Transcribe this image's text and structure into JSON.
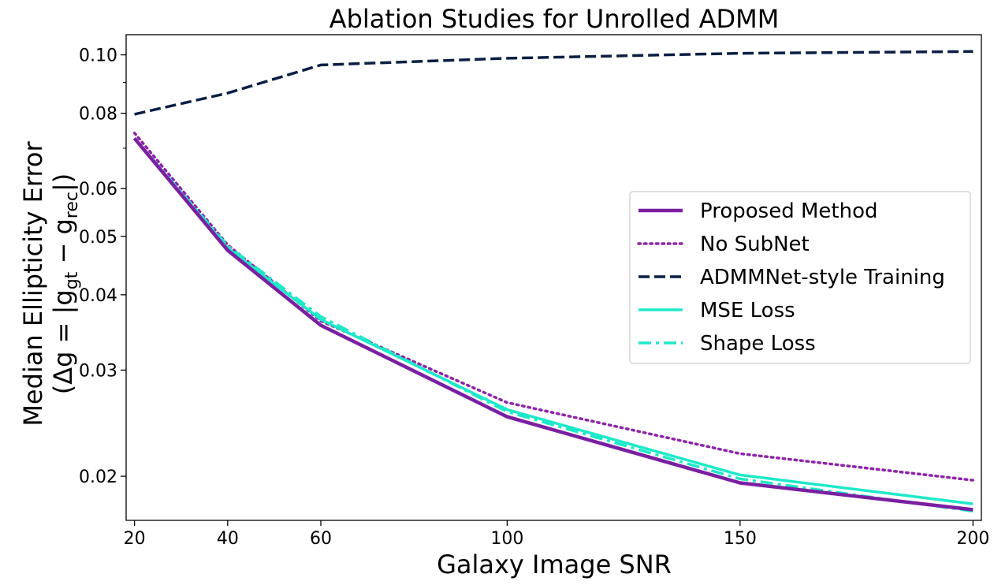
{
  "chart_data": {
    "type": "line",
    "title": "Ablation Studies for Unrolled ADMM",
    "xlabel": "Galaxy Image SNR",
    "ylabel_line1": "Median Ellipticity Error",
    "ylabel_line2_prefix": "(Δg = |g",
    "ylabel_sub_gt": "gt",
    "ylabel_minus": " − g",
    "ylabel_sub_rec": "rec",
    "ylabel_line2_suffix": "|)",
    "yscale": "log",
    "x": [
      20,
      40,
      60,
      100,
      150,
      200
    ],
    "x_ticks": [
      20,
      40,
      60,
      100,
      150,
      200
    ],
    "x_tick_labels": [
      "20",
      "40",
      "60",
      "100",
      "150",
      "200"
    ],
    "xlim": [
      18.2,
      201.8
    ],
    "ylim": [
      0.0169,
      0.108
    ],
    "y_major_ticks": [
      0.02,
      0.03,
      0.04,
      0.05,
      0.06,
      0.08,
      0.1
    ],
    "y_tick_labels": [
      "0.02",
      "0.03",
      "0.04",
      "0.05",
      "0.06",
      "0.08",
      "0.10"
    ],
    "y_minor_ticks": [
      0.07,
      0.09
    ],
    "legend_position": "center-right",
    "series": [
      {
        "name": "Proposed Method",
        "values": [
          0.0727,
          0.0474,
          0.0356,
          0.0251,
          0.0195,
          0.0176
        ],
        "color": "#7B1FA2",
        "style": "solid",
        "width": 4.5
      },
      {
        "name": "No SubNet",
        "values": [
          0.0742,
          0.0484,
          0.0362,
          0.0265,
          0.0218,
          0.0197
        ],
        "color": "#8E24AA",
        "style": "dotted",
        "width": 3.5
      },
      {
        "name": "ADMMNet-style Training",
        "values": [
          0.0797,
          0.0864,
          0.0962,
          0.0987,
          0.1006,
          0.1013
        ],
        "color": "#0A1F44",
        "style": "dashed",
        "width": 3.5
      },
      {
        "name": "MSE Loss",
        "values": [
          0.0727,
          0.0478,
          0.0364,
          0.0258,
          0.0201,
          0.018
        ],
        "color": "#1DE9C9",
        "style": "solid",
        "width": 3.5
      },
      {
        "name": "Shape Loss",
        "values": [
          0.0727,
          0.0482,
          0.0368,
          0.0256,
          0.0198,
          0.0175
        ],
        "color": "#1DE9C9",
        "style": "dashdot",
        "width": 3.5
      }
    ]
  }
}
